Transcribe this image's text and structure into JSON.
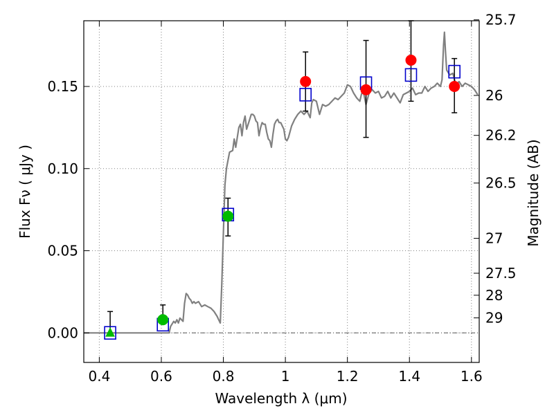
{
  "chart_data": {
    "type": "scatter",
    "x_axis": {
      "label": "Wavelength  λ (μm)",
      "range": [
        0.35,
        1.625
      ],
      "ticks": [
        {
          "v": 0.4,
          "label": "0.4"
        },
        {
          "v": 0.6,
          "label": "0.6"
        },
        {
          "v": 0.8,
          "label": "0.8"
        },
        {
          "v": 1.0,
          "label": "1"
        },
        {
          "v": 1.2,
          "label": "1.2"
        },
        {
          "v": 1.4,
          "label": "1.4"
        },
        {
          "v": 1.6,
          "label": "1.6"
        }
      ]
    },
    "y_axis": {
      "label": "Flux  Fν  ( μJy )",
      "range": [
        -0.018,
        0.19
      ],
      "ticks": [
        {
          "v": 0.0,
          "label": "0.00"
        },
        {
          "v": 0.05,
          "label": "0.05"
        },
        {
          "v": 0.1,
          "label": "0.10"
        },
        {
          "v": 0.15,
          "label": "0.15"
        }
      ]
    },
    "y2_axis": {
      "label": "Magnitude (AB)",
      "ticks": [
        {
          "mag": 25.7,
          "label": "25.7"
        },
        {
          "mag": 26.0,
          "label": "26"
        },
        {
          "mag": 26.2,
          "label": "26.2"
        },
        {
          "mag": 26.5,
          "label": "26.5"
        },
        {
          "mag": 27.0,
          "label": "27"
        },
        {
          "mag": 27.5,
          "label": "27.5"
        },
        {
          "mag": 28.0,
          "label": "28"
        },
        {
          "mag": 29.0,
          "label": "29"
        }
      ]
    },
    "grid": true,
    "zero_line": true,
    "colors": {
      "sed": "#808080",
      "model_squares": "#0000cc",
      "obs_red": "#ff0000",
      "obs_green": "#00bb00",
      "errorbar": "#000000"
    },
    "sed_model": [
      [
        0.35,
        0.0
      ],
      [
        0.4,
        0.0
      ],
      [
        0.5,
        0.0
      ],
      [
        0.6,
        0.0
      ],
      [
        0.625,
        0.0
      ],
      [
        0.63,
        0.004
      ],
      [
        0.64,
        0.007
      ],
      [
        0.645,
        0.006
      ],
      [
        0.65,
        0.008
      ],
      [
        0.655,
        0.006
      ],
      [
        0.66,
        0.009
      ],
      [
        0.665,
        0.008
      ],
      [
        0.67,
        0.007
      ],
      [
        0.675,
        0.018
      ],
      [
        0.68,
        0.024
      ],
      [
        0.685,
        0.023
      ],
      [
        0.69,
        0.021
      ],
      [
        0.695,
        0.02
      ],
      [
        0.7,
        0.018
      ],
      [
        0.705,
        0.019
      ],
      [
        0.71,
        0.018
      ],
      [
        0.72,
        0.019
      ],
      [
        0.73,
        0.016
      ],
      [
        0.74,
        0.017
      ],
      [
        0.75,
        0.016
      ],
      [
        0.76,
        0.015
      ],
      [
        0.77,
        0.013
      ],
      [
        0.78,
        0.01
      ],
      [
        0.785,
        0.008
      ],
      [
        0.79,
        0.006
      ],
      [
        0.795,
        0.03
      ],
      [
        0.8,
        0.06
      ],
      [
        0.805,
        0.09
      ],
      [
        0.81,
        0.1
      ],
      [
        0.815,
        0.105
      ],
      [
        0.82,
        0.11
      ],
      [
        0.83,
        0.111
      ],
      [
        0.835,
        0.118
      ],
      [
        0.84,
        0.113
      ],
      [
        0.85,
        0.125
      ],
      [
        0.855,
        0.127
      ],
      [
        0.86,
        0.12
      ],
      [
        0.865,
        0.128
      ],
      [
        0.87,
        0.132
      ],
      [
        0.875,
        0.124
      ],
      [
        0.88,
        0.127
      ],
      [
        0.885,
        0.13
      ],
      [
        0.89,
        0.133
      ],
      [
        0.895,
        0.133
      ],
      [
        0.9,
        0.132
      ],
      [
        0.905,
        0.129
      ],
      [
        0.91,
        0.128
      ],
      [
        0.915,
        0.12
      ],
      [
        0.92,
        0.125
      ],
      [
        0.925,
        0.128
      ],
      [
        0.93,
        0.127
      ],
      [
        0.935,
        0.127
      ],
      [
        0.94,
        0.122
      ],
      [
        0.945,
        0.118
      ],
      [
        0.95,
        0.117
      ],
      [
        0.955,
        0.113
      ],
      [
        0.96,
        0.121
      ],
      [
        0.965,
        0.127
      ],
      [
        0.97,
        0.129
      ],
      [
        0.975,
        0.13
      ],
      [
        0.98,
        0.128
      ],
      [
        0.985,
        0.128
      ],
      [
        0.99,
        0.126
      ],
      [
        0.995,
        0.124
      ],
      [
        1.0,
        0.118
      ],
      [
        1.005,
        0.117
      ],
      [
        1.01,
        0.119
      ],
      [
        1.02,
        0.126
      ],
      [
        1.03,
        0.13
      ],
      [
        1.04,
        0.133
      ],
      [
        1.05,
        0.135
      ],
      [
        1.06,
        0.133
      ],
      [
        1.07,
        0.135
      ],
      [
        1.08,
        0.131
      ],
      [
        1.085,
        0.14
      ],
      [
        1.09,
        0.142
      ],
      [
        1.1,
        0.141
      ],
      [
        1.11,
        0.133
      ],
      [
        1.12,
        0.139
      ],
      [
        1.13,
        0.138
      ],
      [
        1.14,
        0.139
      ],
      [
        1.15,
        0.141
      ],
      [
        1.16,
        0.143
      ],
      [
        1.17,
        0.142
      ],
      [
        1.18,
        0.144
      ],
      [
        1.19,
        0.146
      ],
      [
        1.2,
        0.151
      ],
      [
        1.21,
        0.15
      ],
      [
        1.22,
        0.146
      ],
      [
        1.23,
        0.143
      ],
      [
        1.24,
        0.141
      ],
      [
        1.245,
        0.145
      ],
      [
        1.25,
        0.148
      ],
      [
        1.26,
        0.139
      ],
      [
        1.27,
        0.146
      ],
      [
        1.28,
        0.148
      ],
      [
        1.29,
        0.146
      ],
      [
        1.3,
        0.147
      ],
      [
        1.31,
        0.143
      ],
      [
        1.32,
        0.144
      ],
      [
        1.33,
        0.147
      ],
      [
        1.34,
        0.143
      ],
      [
        1.35,
        0.146
      ],
      [
        1.36,
        0.143
      ],
      [
        1.37,
        0.14
      ],
      [
        1.38,
        0.145
      ],
      [
        1.39,
        0.146
      ],
      [
        1.4,
        0.147
      ],
      [
        1.41,
        0.149
      ],
      [
        1.42,
        0.145
      ],
      [
        1.43,
        0.146
      ],
      [
        1.44,
        0.146
      ],
      [
        1.45,
        0.15
      ],
      [
        1.46,
        0.147
      ],
      [
        1.47,
        0.149
      ],
      [
        1.48,
        0.15
      ],
      [
        1.49,
        0.152
      ],
      [
        1.5,
        0.15
      ],
      [
        1.505,
        0.154
      ],
      [
        1.51,
        0.175
      ],
      [
        1.513,
        0.183
      ],
      [
        1.516,
        0.172
      ],
      [
        1.52,
        0.16
      ],
      [
        1.53,
        0.157
      ],
      [
        1.54,
        0.158
      ],
      [
        1.55,
        0.151
      ],
      [
        1.56,
        0.153
      ],
      [
        1.57,
        0.15
      ],
      [
        1.58,
        0.152
      ],
      [
        1.59,
        0.151
      ],
      [
        1.6,
        0.15
      ],
      [
        1.61,
        0.148
      ],
      [
        1.62,
        0.145
      ]
    ],
    "model_squares": [
      [
        0.435,
        0.0
      ],
      [
        0.605,
        0.005
      ],
      [
        0.815,
        0.072
      ],
      [
        1.065,
        0.145
      ],
      [
        1.26,
        0.152
      ],
      [
        1.405,
        0.157
      ],
      [
        1.545,
        0.159
      ]
    ],
    "observations": [
      {
        "x": 0.435,
        "y": 0.0,
        "err_lo": 0.0,
        "err_hi": 0.013,
        "marker": "triangle",
        "color": "green"
      },
      {
        "x": 0.605,
        "y": 0.008,
        "err_lo": 0.008,
        "err_hi": 0.017,
        "marker": "circle",
        "color": "green"
      },
      {
        "x": 0.815,
        "y": 0.071,
        "err_lo": 0.059,
        "err_hi": 0.082,
        "marker": "circle",
        "color": "green"
      },
      {
        "x": 1.065,
        "y": 0.153,
        "err_lo": 0.135,
        "err_hi": 0.171,
        "marker": "circle",
        "color": "red"
      },
      {
        "x": 1.26,
        "y": 0.148,
        "err_lo": 0.119,
        "err_hi": 0.178,
        "marker": "circle",
        "color": "red"
      },
      {
        "x": 1.405,
        "y": 0.166,
        "err_lo": 0.141,
        "err_hi": 0.19,
        "marker": "circle",
        "color": "red"
      },
      {
        "x": 1.545,
        "y": 0.15,
        "err_lo": 0.134,
        "err_hi": 0.167,
        "marker": "circle",
        "color": "red"
      }
    ]
  }
}
